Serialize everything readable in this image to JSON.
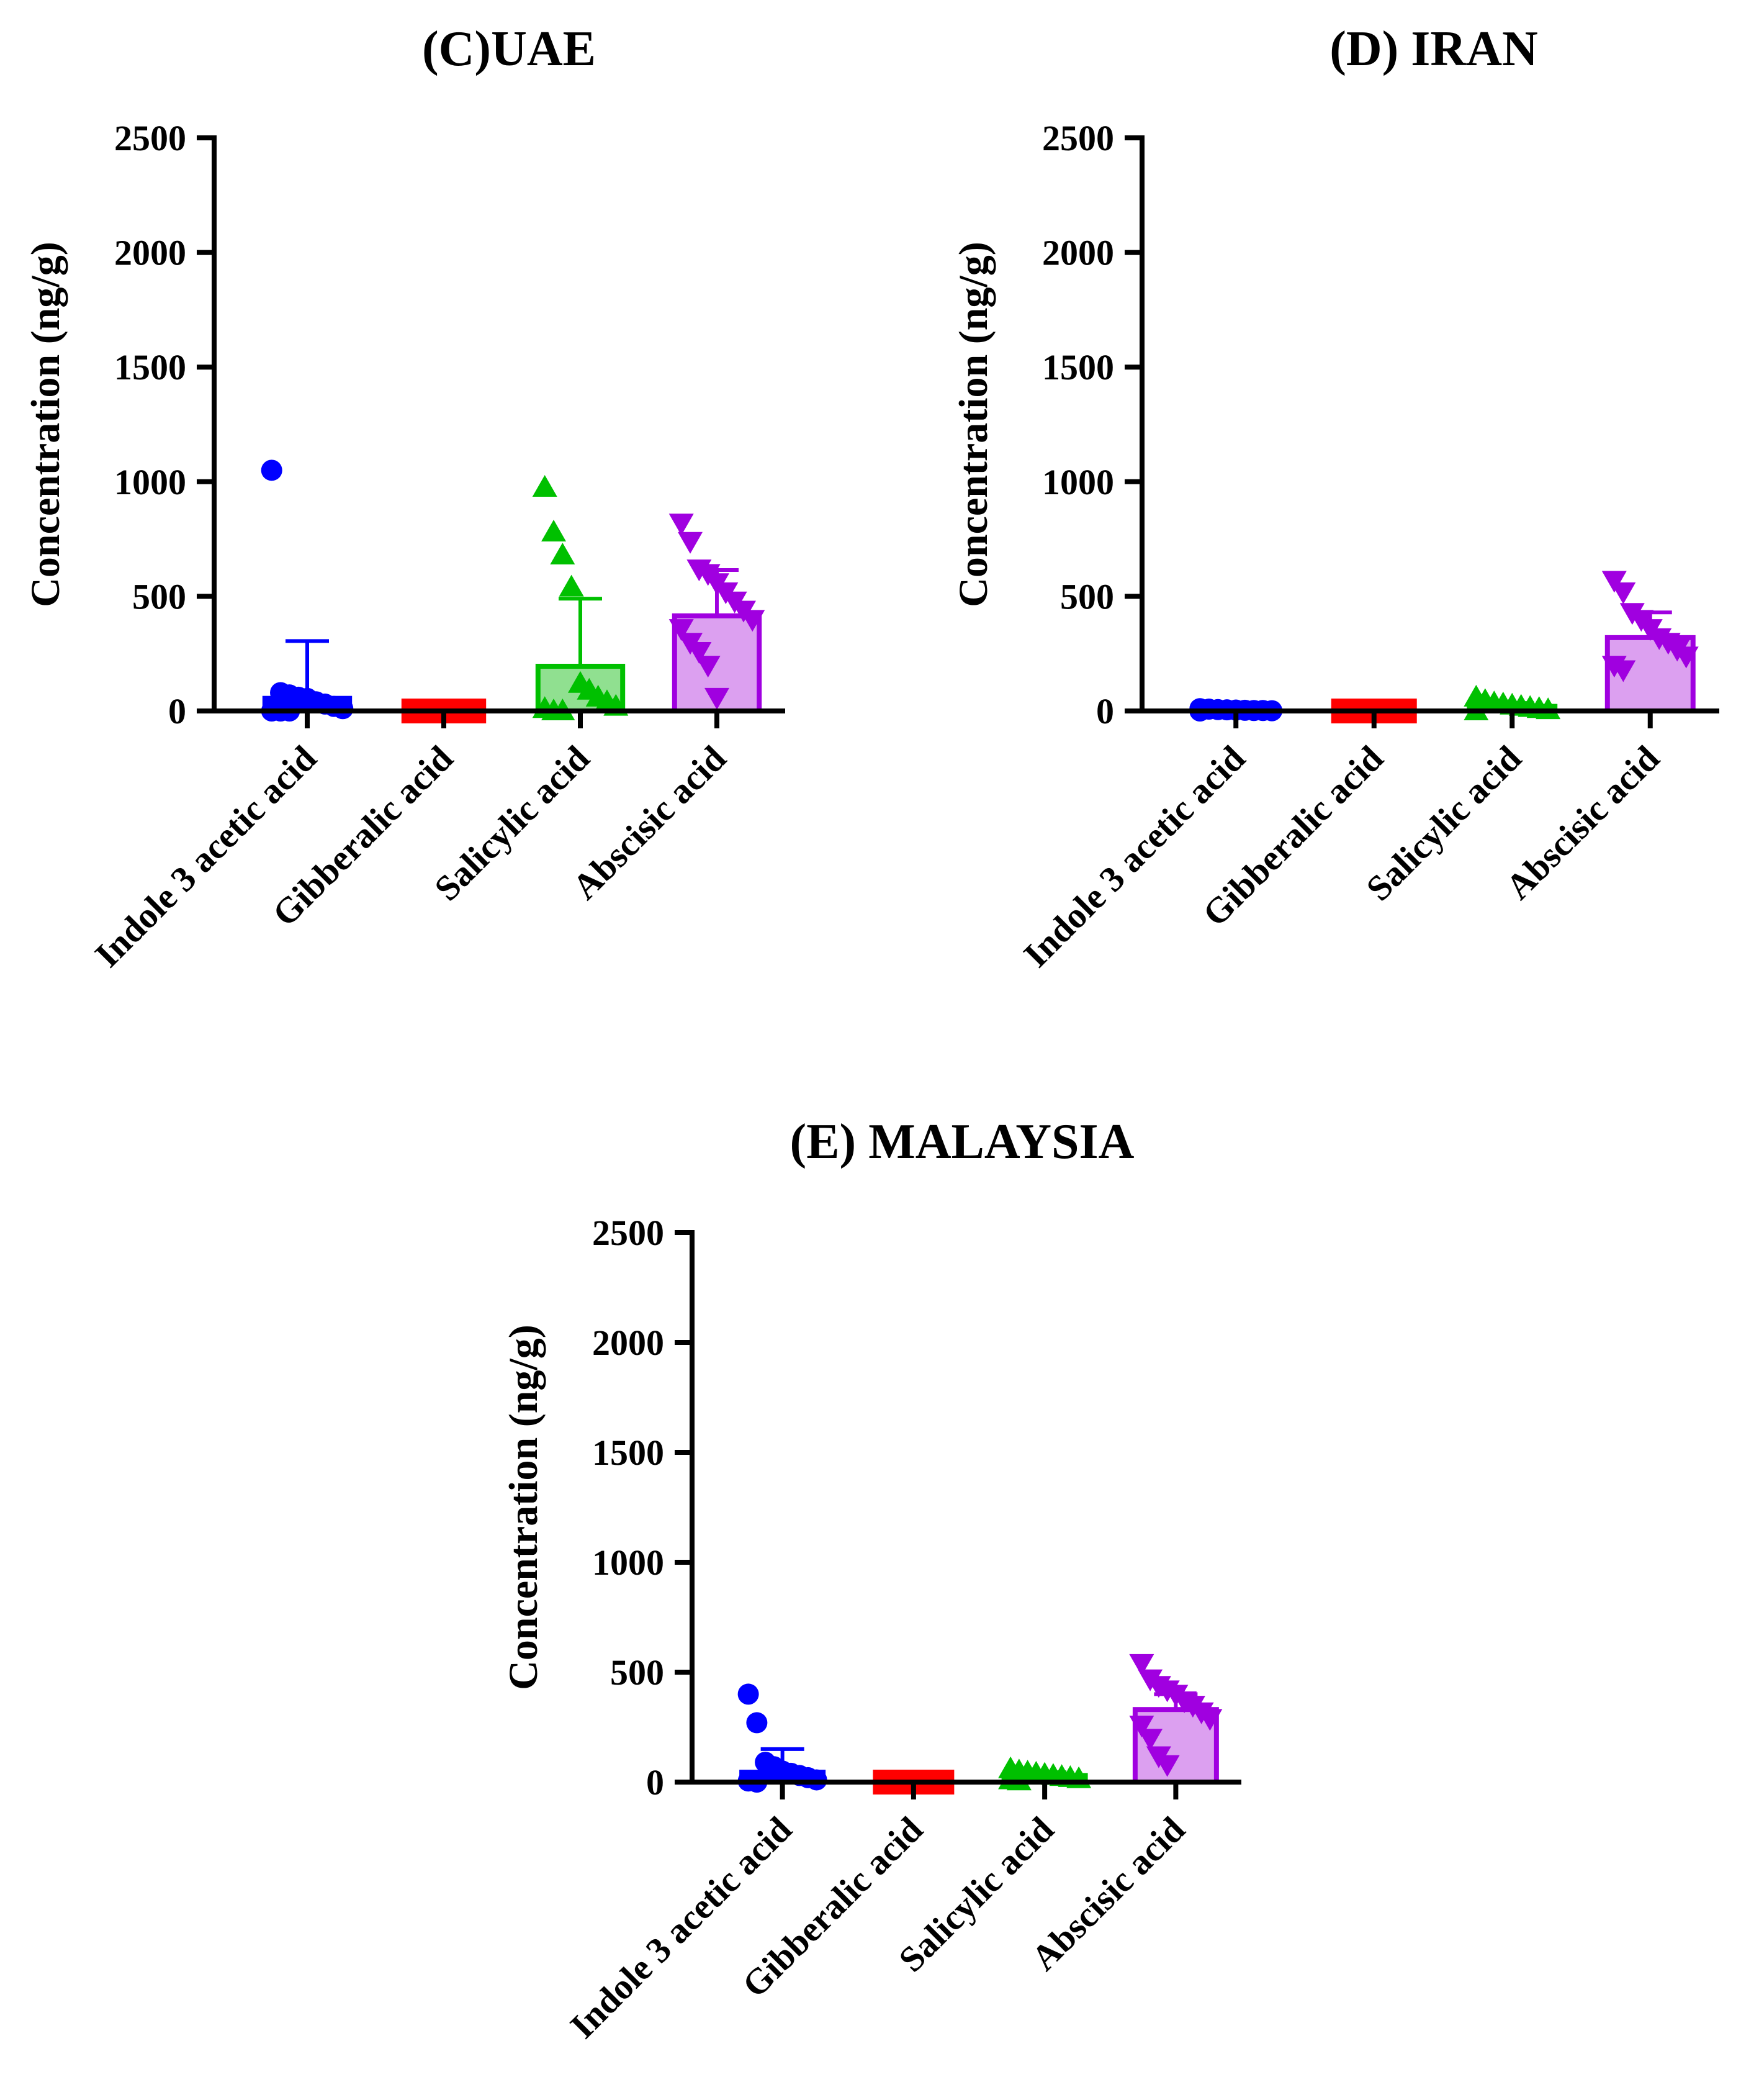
{
  "chart_data": [
    {
      "type": "bar",
      "title": "(C)UAE",
      "xlabel": "",
      "ylabel": "Concentration (ng/g)",
      "ylim": [
        0,
        2500
      ],
      "yticks": [
        "0",
        "500",
        "1000",
        "1500",
        "2000",
        "2500"
      ],
      "categories": [
        "Indole 3 acetic acid",
        "Gibberalic acid",
        "Salicylic acid",
        "Abscisic acid"
      ],
      "values": [
        55,
        0,
        195,
        415
      ],
      "error": [
        250,
        0,
        295,
        200
      ],
      "points": [
        [
          1050,
          80,
          70,
          60,
          55,
          40,
          30,
          20,
          10,
          0,
          0,
          0
        ],
        [],
        [
          975,
          780,
          680,
          540,
          120,
          90,
          60,
          40,
          20,
          10,
          0,
          0
        ],
        [
          820,
          740,
          620,
          600,
          560,
          520,
          480,
          440,
          400,
          360,
          300,
          260,
          200,
          60
        ]
      ],
      "markers": [
        "circle",
        "square",
        "triangle-up",
        "triangle-down"
      ],
      "colors": [
        "#0000ff",
        "#ff0000",
        "#00c000",
        "#a000e0"
      ],
      "fills": [
        "#0000ff",
        "#ff0000",
        "#90e090",
        "#dca0f0"
      ],
      "grid": false
    },
    {
      "type": "bar",
      "title": "(D) IRAN",
      "xlabel": "",
      "ylabel": "Concentration (ng/g)",
      "ylim": [
        0,
        2500
      ],
      "yticks": [
        "0",
        "500",
        "1000",
        "1500",
        "2000",
        "2500"
      ],
      "categories": [
        "Indole 3 acetic acid",
        "Gibberalic acid",
        "Salicylic acid",
        "Abscisic acid"
      ],
      "values": [
        5,
        0,
        20,
        320
      ],
      "error": [
        5,
        0,
        15,
        110
      ],
      "points": [
        [
          10,
          8,
          6,
          5,
          4,
          3,
          2,
          2,
          1,
          0
        ],
        [],
        [
          60,
          45,
          35,
          30,
          25,
          20,
          15,
          10,
          5,
          0
        ],
        [
          570,
          520,
          430,
          400,
          360,
          320,
          300,
          270,
          240,
          200,
          180
        ]
      ],
      "markers": [
        "circle",
        "square",
        "triangle-up",
        "triangle-down"
      ],
      "colors": [
        "#0000ff",
        "#ff0000",
        "#00c000",
        "#a000e0"
      ],
      "fills": [
        "#0000ff",
        "#ff0000",
        "#90e090",
        "#dca0f0"
      ],
      "grid": false
    },
    {
      "type": "bar",
      "title": "(E) MALAYSIA",
      "xlabel": "",
      "ylabel": "Concentration (ng/g)",
      "ylim": [
        0,
        2500
      ],
      "yticks": [
        "0",
        "500",
        "1000",
        "1500",
        "2000",
        "2500"
      ],
      "categories": [
        "Indole 3 acetic acid",
        "Gibberalic acid",
        "Salicylic acid",
        "Abscisic acid"
      ],
      "values": [
        45,
        0,
        30,
        330
      ],
      "error": [
        105,
        0,
        15,
        70
      ],
      "points": [
        [
          400,
          270,
          90,
          70,
          50,
          40,
          30,
          20,
          10,
          5,
          0
        ],
        [],
        [
          60,
          50,
          45,
          40,
          35,
          30,
          25,
          20,
          15,
          10,
          5
        ],
        [
          540,
          470,
          440,
          420,
          400,
          370,
          350,
          320,
          290,
          260,
          200,
          120,
          80
        ]
      ],
      "markers": [
        "circle",
        "square",
        "triangle-up",
        "triangle-down"
      ],
      "colors": [
        "#0000ff",
        "#ff0000",
        "#00c000",
        "#a000e0"
      ],
      "fills": [
        "#0000ff",
        "#ff0000",
        "#90e090",
        "#dca0f0"
      ],
      "grid": false
    }
  ]
}
